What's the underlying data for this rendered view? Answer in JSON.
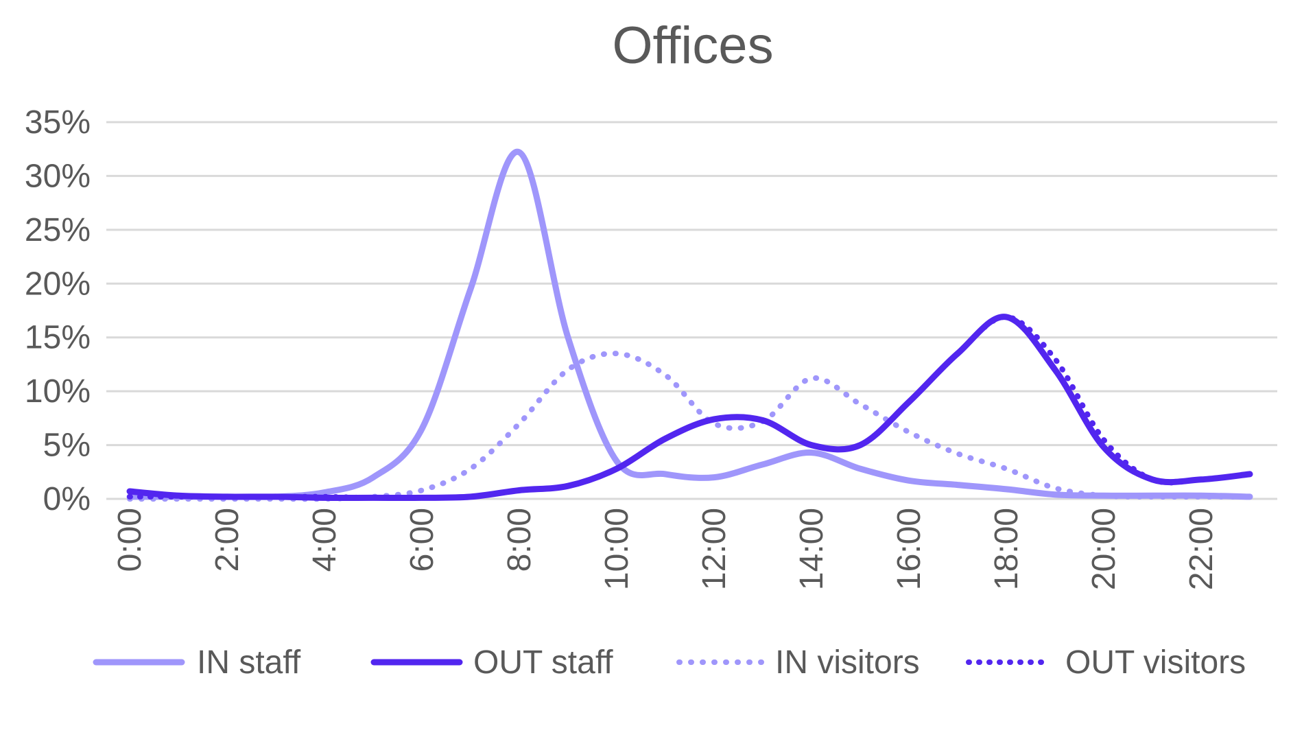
{
  "chart_data": {
    "type": "line",
    "title": "Offices",
    "xlabel": "",
    "ylabel": "",
    "x": [
      0,
      1,
      2,
      3,
      4,
      5,
      6,
      7,
      8,
      9,
      10,
      11,
      12,
      13,
      14,
      15,
      16,
      17,
      18,
      19,
      20,
      21,
      22,
      23
    ],
    "x_tick_values": [
      0,
      2,
      4,
      6,
      8,
      10,
      12,
      14,
      16,
      18,
      20,
      22
    ],
    "x_tick_labels": [
      "0:00",
      "2:00",
      "4:00",
      "6:00",
      "8:00",
      "10:00",
      "12:00",
      "14:00",
      "16:00",
      "18:00",
      "20:00",
      "22:00"
    ],
    "y_ticks": [
      0,
      5,
      10,
      15,
      20,
      25,
      30,
      35
    ],
    "y_tick_labels": [
      "0%",
      "5%",
      "10%",
      "15%",
      "20%",
      "25%",
      "30%",
      "35%"
    ],
    "ylim": [
      0,
      35
    ],
    "xlim": [
      0,
      23
    ],
    "grid": true,
    "legend_position": "bottom",
    "series": [
      {
        "name": "IN staff",
        "style": "solid-light",
        "values": [
          0.2,
          0.2,
          0.2,
          0.2,
          0.6,
          2.0,
          6.5,
          19.5,
          32.2,
          15.0,
          3.5,
          2.3,
          2.0,
          3.2,
          4.3,
          2.8,
          1.7,
          1.3,
          0.9,
          0.4,
          0.3,
          0.3,
          0.3,
          0.2
        ]
      },
      {
        "name": "OUT staff",
        "style": "solid-dark",
        "values": [
          0.7,
          0.3,
          0.2,
          0.2,
          0.1,
          0.1,
          0.1,
          0.2,
          0.8,
          1.2,
          2.8,
          5.6,
          7.4,
          7.3,
          5.0,
          5.0,
          9.0,
          13.5,
          16.9,
          12.0,
          4.8,
          1.8,
          1.8,
          2.3
        ]
      },
      {
        "name": "IN visitors",
        "style": "dotted-light",
        "values": [
          0.0,
          0.0,
          0.0,
          0.0,
          0.0,
          0.2,
          0.8,
          2.8,
          7.0,
          12.0,
          13.5,
          11.5,
          7.0,
          7.2,
          11.2,
          8.8,
          6.2,
          4.2,
          2.8,
          1.0,
          0.3,
          0.2,
          0.2,
          0.2
        ]
      },
      {
        "name": "OUT visitors",
        "style": "dotted-dark",
        "values": [
          0.2,
          0.2,
          0.2,
          0.2,
          0.2,
          0.1,
          0.1,
          0.2,
          0.8,
          1.2,
          2.8,
          5.6,
          7.4,
          7.3,
          5.0,
          5.0,
          9.0,
          13.5,
          16.9,
          13.0,
          5.5,
          1.8,
          1.8,
          2.3
        ]
      }
    ],
    "colors": {
      "light": "#9F96FB",
      "dark": "#5226EF",
      "grid": "#D9D9D9",
      "text": "#595959"
    }
  }
}
